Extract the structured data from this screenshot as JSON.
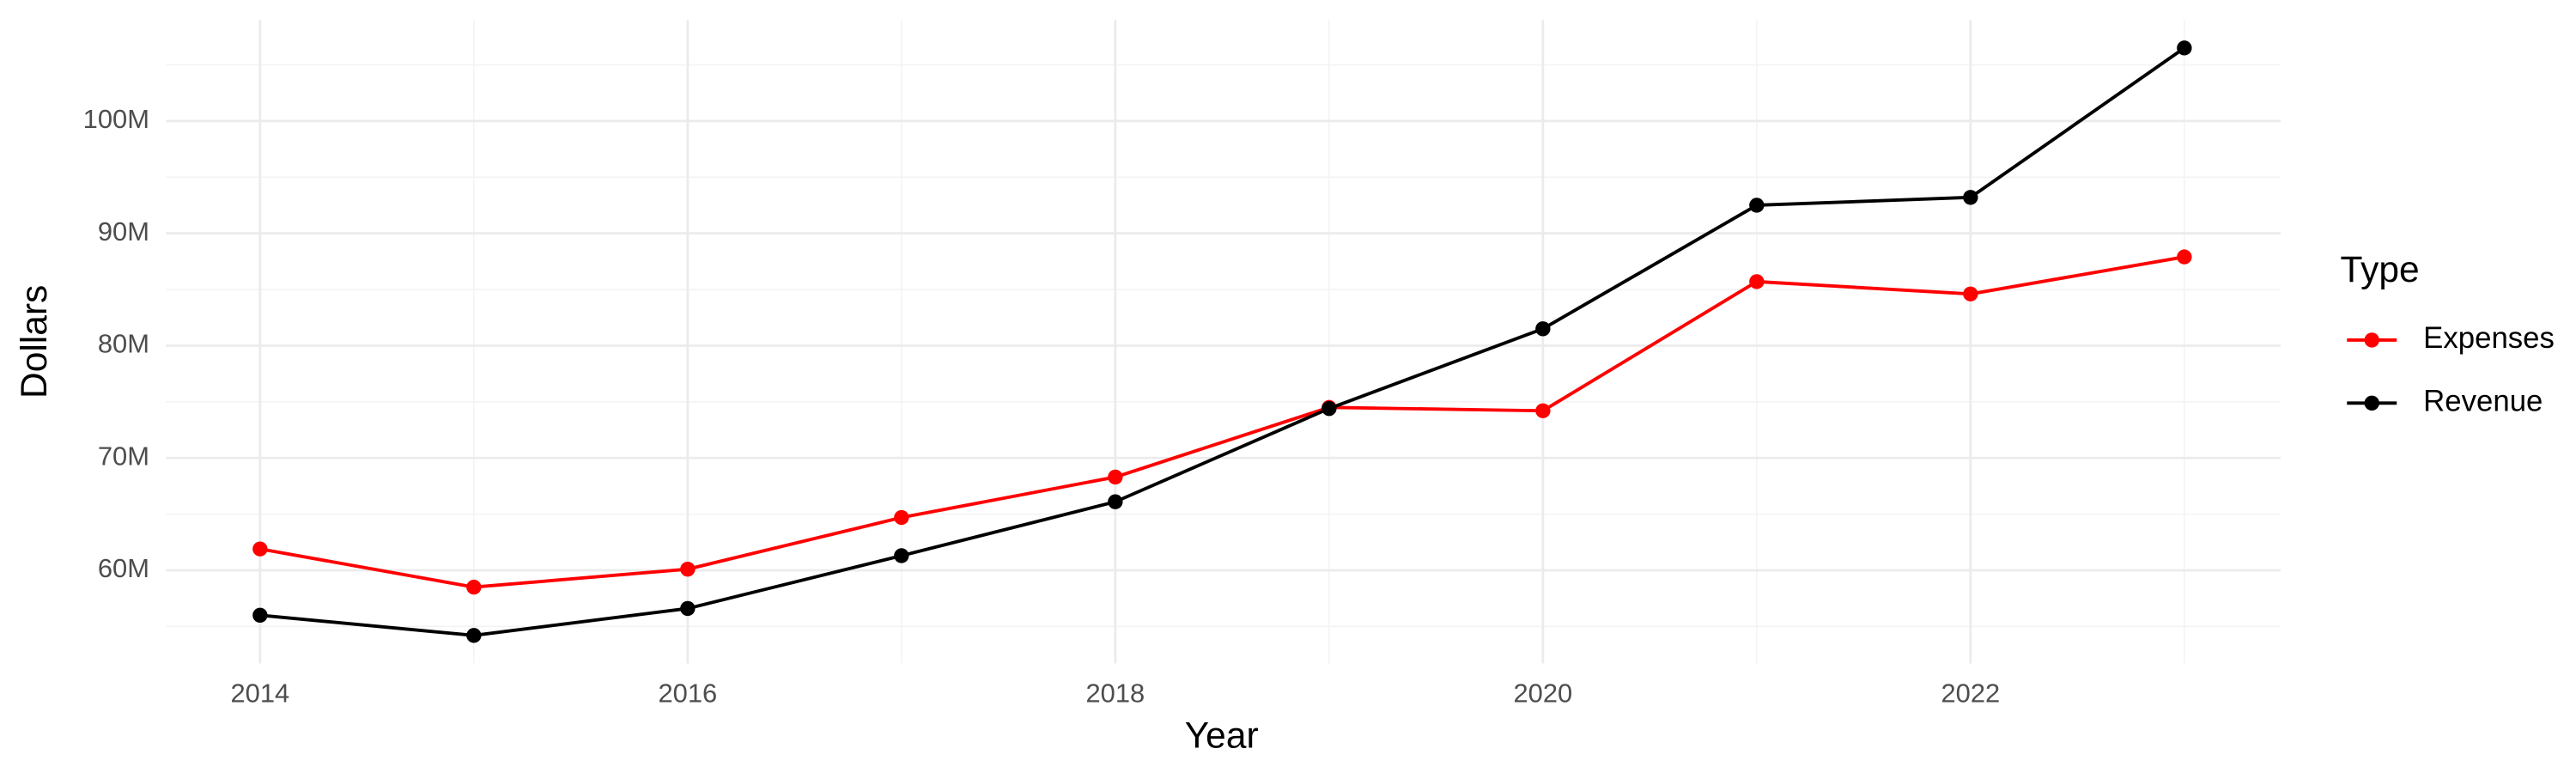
{
  "chart_data": {
    "type": "line",
    "x_label": "Year",
    "y_label": "Dollars",
    "x": [
      2014,
      2015,
      2016,
      2017,
      2018,
      2019,
      2020,
      2021,
      2022,
      2023
    ],
    "series": [
      {
        "name": "Expenses",
        "color": "#ff0000",
        "values": [
          61900000,
          58500000,
          60100000,
          64700000,
          68300000,
          74500000,
          74200000,
          85700000,
          84600000,
          87900000
        ]
      },
      {
        "name": "Revenue",
        "color": "#000000",
        "values": [
          56000000,
          54200000,
          56600000,
          61300000,
          66100000,
          74400000,
          81500000,
          92500000,
          93200000,
          106500000
        ]
      }
    ],
    "xlim": [
      2013.56,
      2023.45
    ],
    "xticks": [
      2014,
      2016,
      2018,
      2020,
      2022
    ],
    "ylim": [
      51700000,
      109000000
    ],
    "yticks": [
      {
        "value": 60000000,
        "label": "60M"
      },
      {
        "value": 70000000,
        "label": "70M"
      },
      {
        "value": 80000000,
        "label": "80M"
      },
      {
        "value": 90000000,
        "label": "90M"
      },
      {
        "value": 100000000,
        "label": "100M"
      }
    ],
    "grid": true,
    "legend_title": "Type",
    "legend_position": "right"
  }
}
